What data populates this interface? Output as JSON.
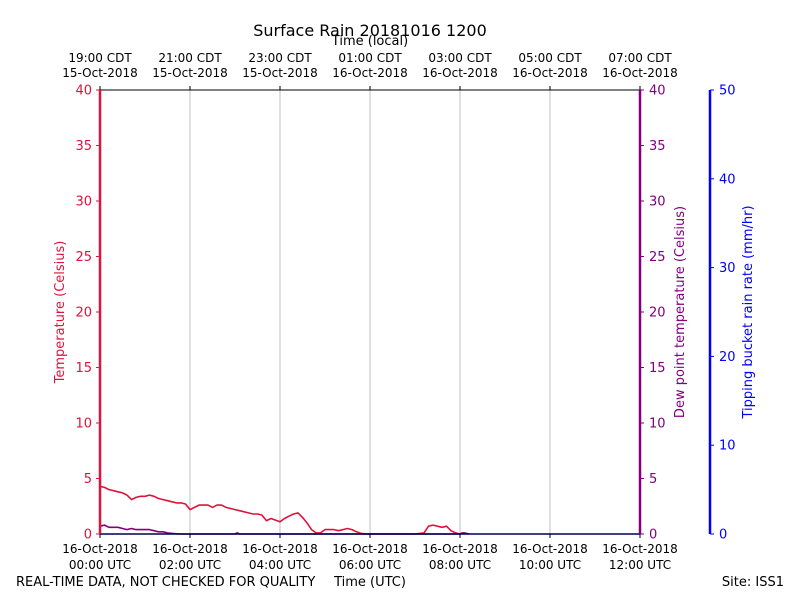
{
  "chart_data": {
    "type": "line",
    "title": "Surface Rain 20181016 1200",
    "x_top_label": "Time (local)",
    "x_bottom_label": "Time (UTC)",
    "footer_left": "REAL-TIME DATA, NOT CHECKED FOR QUALITY",
    "footer_right": "Site: ISS1",
    "x_range_utc_hours": [
      0,
      12
    ],
    "grid": "vertical",
    "x_ticks_bottom": [
      {
        "h": 0,
        "line1": "16-Oct-2018",
        "line2": "00:00 UTC"
      },
      {
        "h": 2,
        "line1": "16-Oct-2018",
        "line2": "02:00 UTC"
      },
      {
        "h": 4,
        "line1": "16-Oct-2018",
        "line2": "04:00 UTC"
      },
      {
        "h": 6,
        "line1": "16-Oct-2018",
        "line2": "06:00 UTC"
      },
      {
        "h": 8,
        "line1": "16-Oct-2018",
        "line2": "08:00 UTC"
      },
      {
        "h": 10,
        "line1": "16-Oct-2018",
        "line2": "10:00 UTC"
      },
      {
        "h": 12,
        "line1": "16-Oct-2018",
        "line2": "12:00 UTC"
      }
    ],
    "x_ticks_top": [
      {
        "h": 0,
        "line1": "19:00 CDT",
        "line2": "15-Oct-2018"
      },
      {
        "h": 2,
        "line1": "21:00 CDT",
        "line2": "15-Oct-2018"
      },
      {
        "h": 4,
        "line1": "23:00 CDT",
        "line2": "15-Oct-2018"
      },
      {
        "h": 6,
        "line1": "01:00 CDT",
        "line2": "16-Oct-2018"
      },
      {
        "h": 8,
        "line1": "03:00 CDT",
        "line2": "16-Oct-2018"
      },
      {
        "h": 10,
        "line1": "05:00 CDT",
        "line2": "16-Oct-2018"
      },
      {
        "h": 12,
        "line1": "07:00 CDT",
        "line2": "16-Oct-2018"
      }
    ],
    "axes": {
      "left": {
        "label": "Temperature (Celsius)",
        "color": "#dc143c",
        "ylim": [
          0,
          40
        ],
        "ticks": [
          0,
          5,
          10,
          15,
          20,
          25,
          30,
          35,
          40
        ]
      },
      "right1": {
        "label": "Dew point temperature (Celsius)",
        "color": "#800080",
        "ylim": [
          0,
          40
        ],
        "ticks": [
          0,
          5,
          10,
          15,
          20,
          25,
          30,
          35,
          40
        ]
      },
      "right2": {
        "label": "Tipping bucket rain rate (mm/hr)",
        "color": "#0000ff",
        "ylim": [
          0,
          50
        ],
        "ticks": [
          0,
          10,
          20,
          30,
          40,
          50
        ]
      }
    },
    "series": [
      {
        "axis": "left",
        "color": "#dc143c",
        "x": [
          0,
          0.1,
          0.2,
          0.3,
          0.4,
          0.5,
          0.6,
          0.7,
          0.8,
          0.9,
          1.0,
          1.1,
          1.2,
          1.3,
          1.4,
          1.5,
          1.6,
          1.7,
          1.8,
          1.9,
          2.0,
          2.2,
          2.3,
          2.4,
          2.5,
          2.6,
          2.7,
          2.8,
          2.9,
          3.0,
          3.1,
          3.3,
          3.4,
          3.5,
          3.6,
          3.7,
          3.8,
          4.0,
          4.1,
          4.2,
          4.3,
          4.4,
          4.5,
          4.6,
          4.7,
          4.8,
          4.9,
          5.0,
          5.1,
          5.2,
          5.3,
          5.5,
          5.6,
          5.7,
          5.8,
          5.9,
          6.0,
          7.0,
          7.2,
          7.3,
          7.4,
          7.6,
          7.7,
          7.8,
          7.9,
          8.0
        ],
        "y": [
          4.3,
          4.2,
          4.0,
          3.9,
          3.8,
          3.7,
          3.5,
          3.1,
          3.3,
          3.4,
          3.4,
          3.5,
          3.4,
          3.2,
          3.1,
          3.0,
          2.9,
          2.8,
          2.8,
          2.7,
          2.2,
          2.6,
          2.6,
          2.6,
          2.4,
          2.6,
          2.6,
          2.4,
          2.3,
          2.2,
          2.1,
          1.9,
          1.8,
          1.8,
          1.7,
          1.2,
          1.4,
          1.1,
          1.4,
          1.6,
          1.8,
          1.9,
          1.5,
          1.0,
          0.4,
          0.1,
          0.1,
          0.4,
          0.4,
          0.4,
          0.3,
          0.5,
          0.4,
          0.2,
          0.05,
          0.02,
          0.0,
          0.0,
          0.1,
          0.7,
          0.8,
          0.6,
          0.7,
          0.3,
          0.1,
          0.0
        ]
      },
      {
        "axis": "right1",
        "color": "#800080",
        "x": [
          0,
          0.1,
          0.2,
          0.3,
          0.4,
          0.5,
          0.6,
          0.7,
          0.8,
          0.9,
          1.0,
          1.1,
          1.2,
          1.3,
          1.4,
          1.5,
          1.6,
          1.7,
          1.8,
          1.9,
          2.0,
          3.0,
          3.05,
          3.1,
          5.0,
          8.0,
          8.05,
          8.1,
          8.2
        ],
        "y": [
          0.7,
          0.8,
          0.6,
          0.6,
          0.6,
          0.5,
          0.4,
          0.5,
          0.4,
          0.4,
          0.4,
          0.4,
          0.3,
          0.2,
          0.2,
          0.1,
          0.05,
          0.02,
          0.0,
          0.0,
          0.0,
          0.0,
          0.1,
          0.0,
          0.0,
          0.0,
          0.1,
          0.1,
          0.0
        ]
      },
      {
        "axis": "right2",
        "color": "#0000ff",
        "x": [
          0,
          12
        ],
        "y": [
          0,
          0
        ]
      }
    ]
  }
}
